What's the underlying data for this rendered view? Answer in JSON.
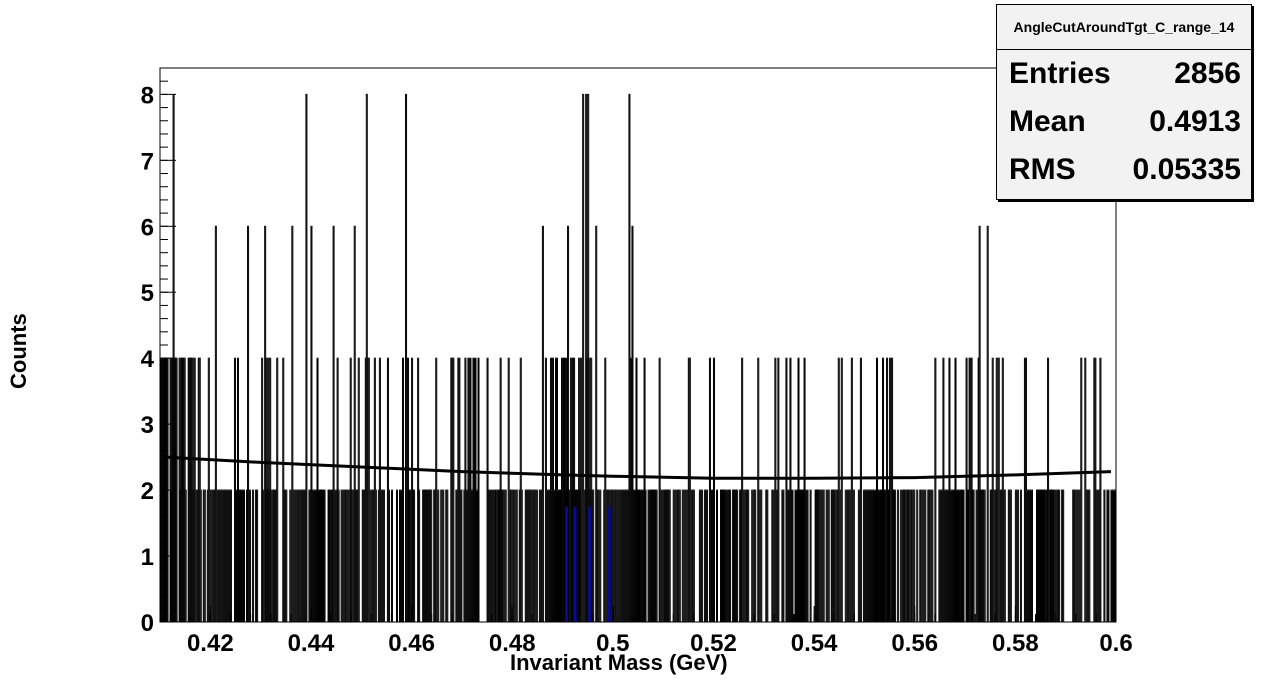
{
  "stats_box": {
    "title": "AngleCutAroundTgt_C_range_14",
    "entries_label": "Entries",
    "entries_value": "2856",
    "mean_label": "Mean",
    "mean_value": "0.4913",
    "rms_label": "RMS",
    "rms_value": "0.05335"
  },
  "chart_data": {
    "type": "bar",
    "title": "",
    "xlabel": "Invariant Mass (GeV)",
    "ylabel": "Counts",
    "xlim": [
      0.41,
      0.6
    ],
    "ylim": [
      0,
      8.4
    ],
    "x_ticks": [
      "0.42",
      "0.44",
      "0.46",
      "0.48",
      "0.5",
      "0.52",
      "0.54",
      "0.56",
      "0.58",
      "0.6"
    ],
    "x_tick_values": [
      0.42,
      0.44,
      0.46,
      0.48,
      0.5,
      0.52,
      0.54,
      0.56,
      0.58,
      0.6
    ],
    "y_ticks": [
      "0",
      "1",
      "2",
      "3",
      "4",
      "5",
      "6",
      "7",
      "8"
    ],
    "y_tick_values": [
      0,
      1,
      2,
      3,
      4,
      5,
      6,
      7,
      8
    ],
    "bin_width": 0.0002,
    "spikes_8": [
      0.4126,
      0.439,
      0.451,
      0.4588,
      0.494,
      0.4946,
      0.4951,
      0.5032
    ],
    "spikes_6": [
      0.4211,
      0.4274,
      0.4309,
      0.4363,
      0.4401,
      0.4444,
      0.4487,
      0.4861,
      0.491,
      0.4966,
      0.5039,
      0.573,
      0.5744
    ],
    "spike4_x_range": [
      0.411,
      0.5985
    ],
    "fit_curve": {
      "x": [
        0.411,
        0.43,
        0.45,
        0.47,
        0.49,
        0.5,
        0.52,
        0.54,
        0.56,
        0.58,
        0.599
      ],
      "y": [
        2.5,
        2.42,
        2.35,
        2.28,
        2.23,
        2.21,
        2.18,
        2.18,
        2.19,
        2.23,
        2.28
      ]
    },
    "fill_color": "#ffffff",
    "line_color": "#000000",
    "signal_color": "#0a0a8c",
    "grid": false
  }
}
